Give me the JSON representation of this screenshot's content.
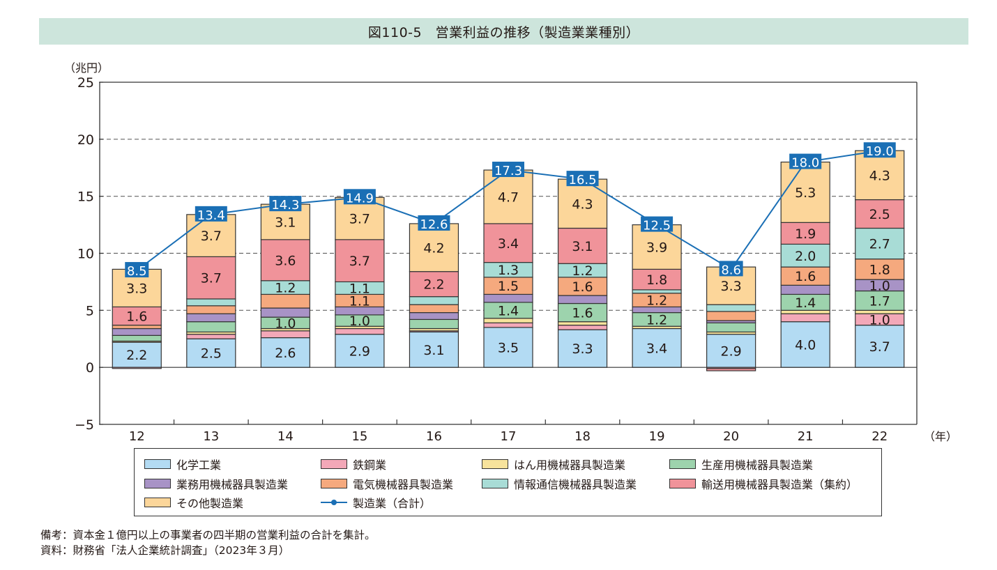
{
  "header": {
    "title": "図110-5　営業利益の推移（製造業業種別）"
  },
  "chart_data": {
    "type": "bar",
    "stacked": true,
    "title": "図110-5　営業利益の推移（製造業業種別）",
    "ylabel": "（兆円）",
    "xlabel": "（年）",
    "ylim": [
      -5,
      25
    ],
    "yticks": [
      -5,
      0,
      5,
      10,
      15,
      20,
      25
    ],
    "ytick_labels": [
      "−5",
      "0",
      "5",
      "10",
      "15",
      "20",
      "25"
    ],
    "grid": "horizontal-dashed",
    "categories": [
      "12",
      "13",
      "14",
      "15",
      "16",
      "17",
      "18",
      "19",
      "20",
      "21",
      "22"
    ],
    "series": [
      {
        "name": "化学工業",
        "color": "#b3dbf3",
        "values": [
          2.2,
          2.5,
          2.6,
          2.9,
          3.1,
          3.5,
          3.3,
          3.4,
          2.9,
          4.0,
          3.7
        ],
        "labels": [
          "2.2",
          "2.5",
          "2.6",
          "2.9",
          "3.1",
          "3.5",
          "3.3",
          "3.4",
          "2.9",
          "4.0",
          "3.7"
        ]
      },
      {
        "name": "鉄鋼業",
        "color": "#f3a8b8",
        "values": [
          -0.1,
          0.4,
          0.6,
          0.5,
          0.1,
          0.4,
          0.4,
          0.0,
          -0.1,
          0.7,
          1.0
        ],
        "labels": [
          "",
          "",
          "",
          "",
          "",
          "",
          "",
          "",
          "",
          "",
          "1.0"
        ]
      },
      {
        "name": "はん用機械器具製造業",
        "color": "#f7e39c",
        "values": [
          0.1,
          0.2,
          0.2,
          0.2,
          0.2,
          0.4,
          0.3,
          0.2,
          0.2,
          0.3,
          0.3
        ],
        "labels": [
          "",
          "",
          "",
          "",
          "",
          "",
          "",
          "",
          "",
          "",
          ""
        ]
      },
      {
        "name": "生産用機械器具製造業",
        "color": "#9dd3ad",
        "values": [
          0.5,
          0.9,
          1.0,
          1.0,
          0.8,
          1.4,
          1.6,
          1.2,
          0.8,
          1.4,
          1.7
        ],
        "labels": [
          "",
          "",
          "1.0",
          "1.0",
          "",
          "1.4",
          "1.6",
          "1.2",
          "",
          "1.4",
          "1.7"
        ]
      },
      {
        "name": "業務用機械器具製造業",
        "color": "#a893c6",
        "values": [
          0.6,
          0.7,
          0.8,
          0.7,
          0.6,
          0.7,
          0.7,
          0.5,
          0.2,
          0.8,
          1.0
        ],
        "labels": [
          "",
          "",
          "",
          "",
          "",
          "",
          "",
          "",
          "",
          "",
          "1.0"
        ]
      },
      {
        "name": "電気機械器具製造業",
        "color": "#f5a97e",
        "values": [
          0.3,
          0.7,
          1.2,
          1.1,
          0.7,
          1.5,
          1.6,
          1.2,
          0.8,
          1.6,
          1.8
        ],
        "labels": [
          "",
          "",
          "",
          "1.1",
          "",
          "1.5",
          "1.6",
          "1.2",
          "",
          "1.6",
          "1.8"
        ]
      },
      {
        "name": "情報通信機械器具製造業",
        "color": "#a8dcd6",
        "values": [
          0.0,
          0.6,
          1.2,
          1.1,
          0.7,
          1.3,
          1.2,
          0.3,
          0.6,
          2.0,
          2.7
        ],
        "labels": [
          "",
          "",
          "1.2",
          "1.1",
          "",
          "1.3",
          "1.2",
          "",
          "",
          "2.0",
          "2.7"
        ]
      },
      {
        "name": "輸送用機械器具製造業（集約）",
        "color": "#f0939a",
        "values": [
          1.6,
          3.7,
          3.6,
          3.7,
          2.2,
          3.4,
          3.1,
          1.8,
          -0.2,
          1.9,
          2.5
        ],
        "labels": [
          "1.6",
          "3.7",
          "3.6",
          "3.7",
          "2.2",
          "3.4",
          "3.1",
          "1.8",
          "",
          "1.9",
          "2.5"
        ]
      },
      {
        "name": "その他製造業",
        "color": "#fcd69a",
        "values": [
          3.3,
          3.7,
          3.1,
          3.7,
          4.2,
          4.7,
          4.3,
          3.9,
          3.3,
          5.3,
          4.3
        ],
        "labels": [
          "3.3",
          "3.7",
          "3.1",
          "3.7",
          "4.2",
          "4.7",
          "4.3",
          "3.9",
          "3.3",
          "5.3",
          "4.3"
        ]
      }
    ],
    "line": {
      "name": "製造業（合計）",
      "color": "#1a6fb5",
      "values": [
        8.5,
        13.4,
        14.3,
        14.9,
        12.6,
        17.3,
        16.5,
        12.5,
        8.6,
        18.0,
        19.0
      ],
      "labels": [
        "8.5",
        "13.4",
        "14.3",
        "14.9",
        "12.6",
        "17.3",
        "16.5",
        "12.5",
        "8.6",
        "18.0",
        "19.0"
      ]
    },
    "legend_position": "bottom"
  },
  "legend": {
    "items": [
      {
        "label": "化学工業",
        "color": "#b3dbf3",
        "kind": "box"
      },
      {
        "label": "鉄鋼業",
        "color": "#f3a8b8",
        "kind": "box"
      },
      {
        "label": "はん用機械器具製造業",
        "color": "#f7e39c",
        "kind": "box"
      },
      {
        "label": "生産用機械器具製造業",
        "color": "#9dd3ad",
        "kind": "box"
      },
      {
        "label": "業務用機械器具製造業",
        "color": "#a893c6",
        "kind": "box"
      },
      {
        "label": "電気機械器具製造業",
        "color": "#f5a97e",
        "kind": "box"
      },
      {
        "label": "情報通信機械器具製造業",
        "color": "#a8dcd6",
        "kind": "box"
      },
      {
        "label": "輸送用機械器具製造業（集約）",
        "color": "#f0939a",
        "kind": "box"
      },
      {
        "label": "その他製造業",
        "color": "#fcd69a",
        "kind": "box"
      },
      {
        "label": "製造業（合計）",
        "color": "#1a6fb5",
        "kind": "line"
      }
    ]
  },
  "notes": {
    "remark": "備考：資本金１億円以上の事業者の四半期の営業利益の合計を集計。",
    "source": "資料：財務省「法人企業統計調査」（2023年３月）"
  }
}
